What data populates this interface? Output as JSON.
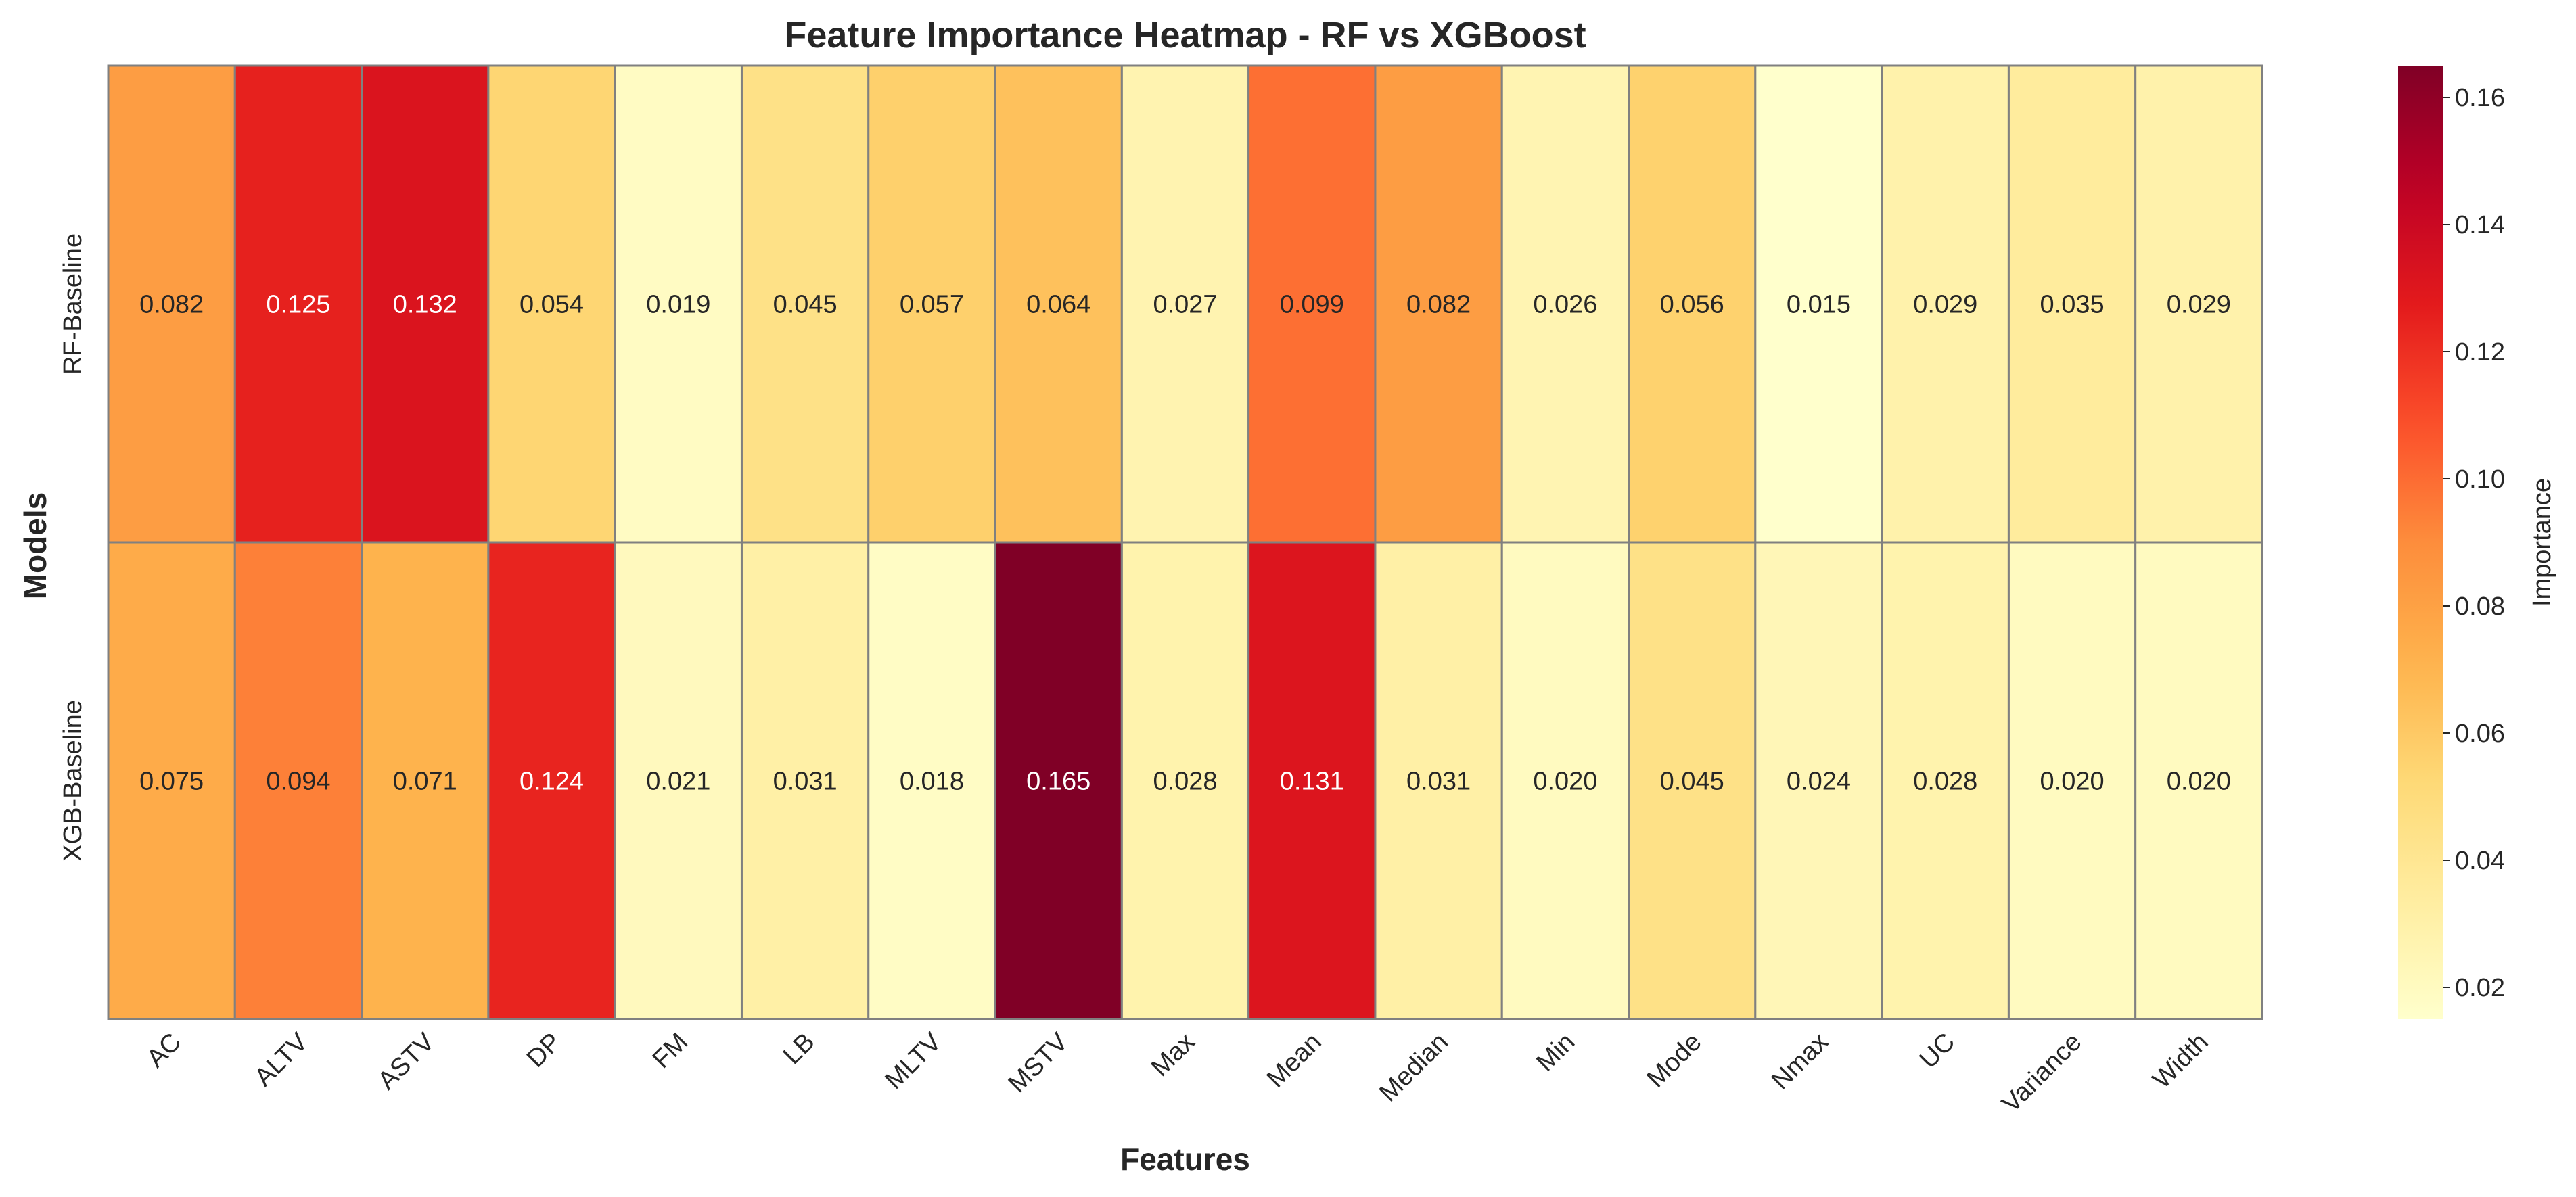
{
  "chart_data": {
    "type": "heatmap",
    "title": "Feature Importance Heatmap - RF vs XGBoost",
    "xlabel": "Features",
    "ylabel": "Models",
    "x_categories": [
      "AC",
      "ALTV",
      "ASTV",
      "DP",
      "FM",
      "LB",
      "MLTV",
      "MSTV",
      "Max",
      "Mean",
      "Median",
      "Min",
      "Mode",
      "Nmax",
      "UC",
      "Variance",
      "Width"
    ],
    "y_categories": [
      "RF-Baseline",
      "XGB-Baseline"
    ],
    "values": [
      [
        0.082,
        0.125,
        0.132,
        0.054,
        0.019,
        0.045,
        0.057,
        0.064,
        0.027,
        0.099,
        0.082,
        0.026,
        0.056,
        0.015,
        0.029,
        0.035,
        0.029
      ],
      [
        0.075,
        0.094,
        0.071,
        0.124,
        0.021,
        0.031,
        0.018,
        0.165,
        0.028,
        0.131,
        0.031,
        0.02,
        0.045,
        0.024,
        0.028,
        0.02,
        0.02
      ]
    ],
    "colormap": "YlOrRd",
    "vmin": 0.015,
    "vmax": 0.165,
    "colorbar": {
      "label": "Importance",
      "ticks": [
        0.02,
        0.04,
        0.06,
        0.08,
        0.1,
        0.12,
        0.14,
        0.16
      ],
      "tick_labels": [
        "0.02",
        "0.04",
        "0.06",
        "0.08",
        "0.10",
        "0.12",
        "0.14",
        "0.16"
      ]
    },
    "annotation_format": "0.000",
    "grid_line_color": "#808080"
  }
}
